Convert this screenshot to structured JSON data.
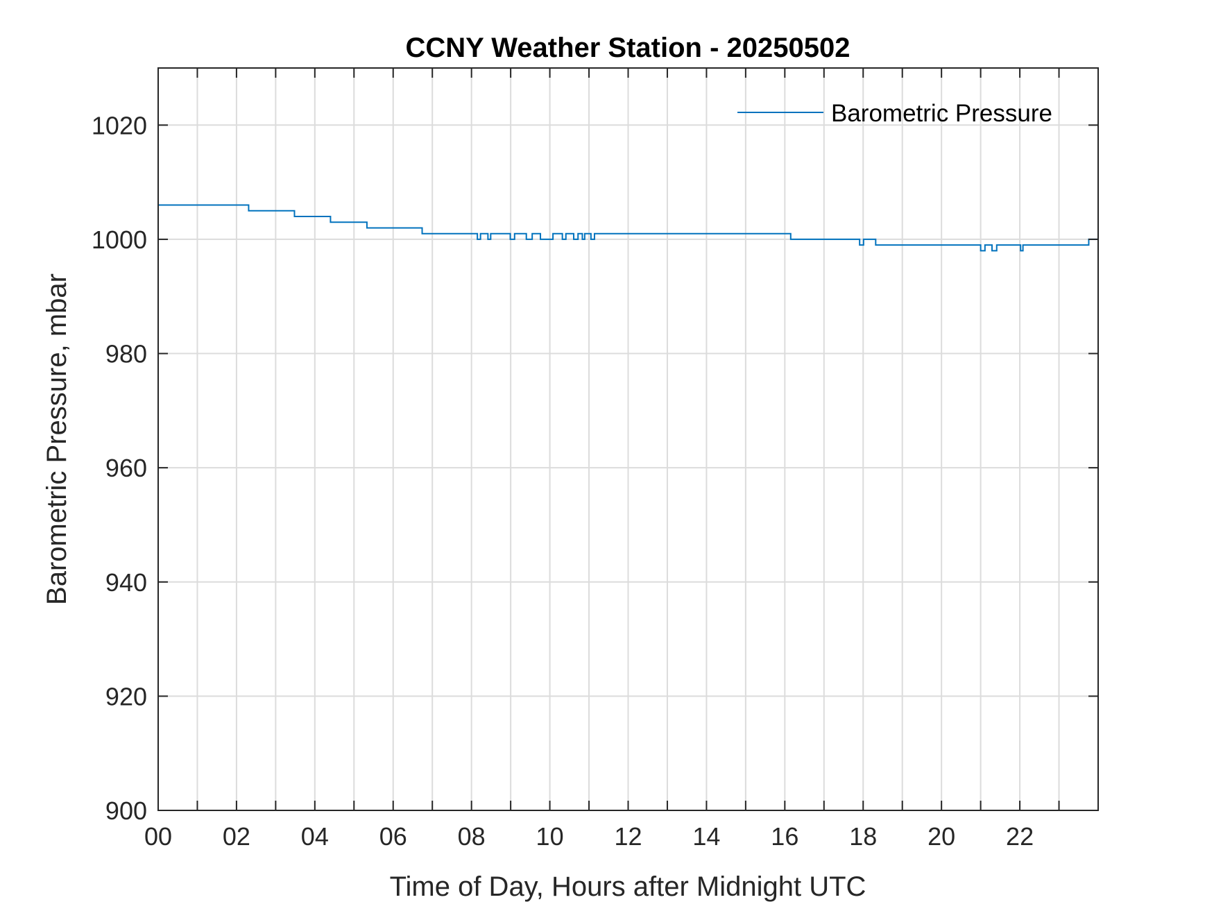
{
  "chart_data": {
    "type": "line",
    "title": "CCNY Weather Station - 20250502",
    "xlabel": "Time of Day, Hours after Midnight UTC",
    "ylabel": "Barometric Pressure, mbar",
    "xlim": [
      0,
      24
    ],
    "ylim": [
      900,
      1030
    ],
    "xticks": [
      0,
      2,
      4,
      6,
      8,
      10,
      12,
      14,
      16,
      18,
      20,
      22
    ],
    "xtick_labels": [
      "00",
      "02",
      "04",
      "06",
      "08",
      "10",
      "12",
      "14",
      "16",
      "18",
      "20",
      "22"
    ],
    "xgrid_step_hours": 1,
    "yticks": [
      900,
      920,
      940,
      960,
      980,
      1000,
      1020
    ],
    "ytick_labels": [
      "900",
      "920",
      "940",
      "960",
      "980",
      "1000",
      "1020"
    ],
    "grid": true,
    "legend_placement": "top-right",
    "series": [
      {
        "name": "Barometric Pressure",
        "color": "#0072BD",
        "step": true,
        "points": [
          [
            0,
            1006
          ],
          [
            2.31,
            1005
          ],
          [
            3.48,
            1004
          ],
          [
            4.4,
            1003
          ],
          [
            5.33,
            1002
          ],
          [
            6.74,
            1001
          ],
          [
            8.15,
            1000
          ],
          [
            8.23,
            1001
          ],
          [
            8.42,
            1000
          ],
          [
            8.49,
            1001
          ],
          [
            8.99,
            1000
          ],
          [
            9.1,
            1001
          ],
          [
            9.4,
            1000
          ],
          [
            9.55,
            1001
          ],
          [
            9.76,
            1000
          ],
          [
            10.08,
            1001
          ],
          [
            10.32,
            1000
          ],
          [
            10.41,
            1001
          ],
          [
            10.61,
            1000
          ],
          [
            10.72,
            1001
          ],
          [
            10.83,
            1000
          ],
          [
            10.89,
            1001
          ],
          [
            11.05,
            1000
          ],
          [
            11.14,
            1001
          ],
          [
            16.15,
            1000
          ],
          [
            17.91,
            999
          ],
          [
            18.01,
            1000
          ],
          [
            18.32,
            999
          ],
          [
            21.0,
            998
          ],
          [
            21.11,
            999
          ],
          [
            21.29,
            998
          ],
          [
            21.41,
            999
          ],
          [
            22.02,
            998
          ],
          [
            22.08,
            999
          ],
          [
            23.76,
            1000
          ],
          [
            24,
            1000
          ]
        ]
      }
    ]
  }
}
